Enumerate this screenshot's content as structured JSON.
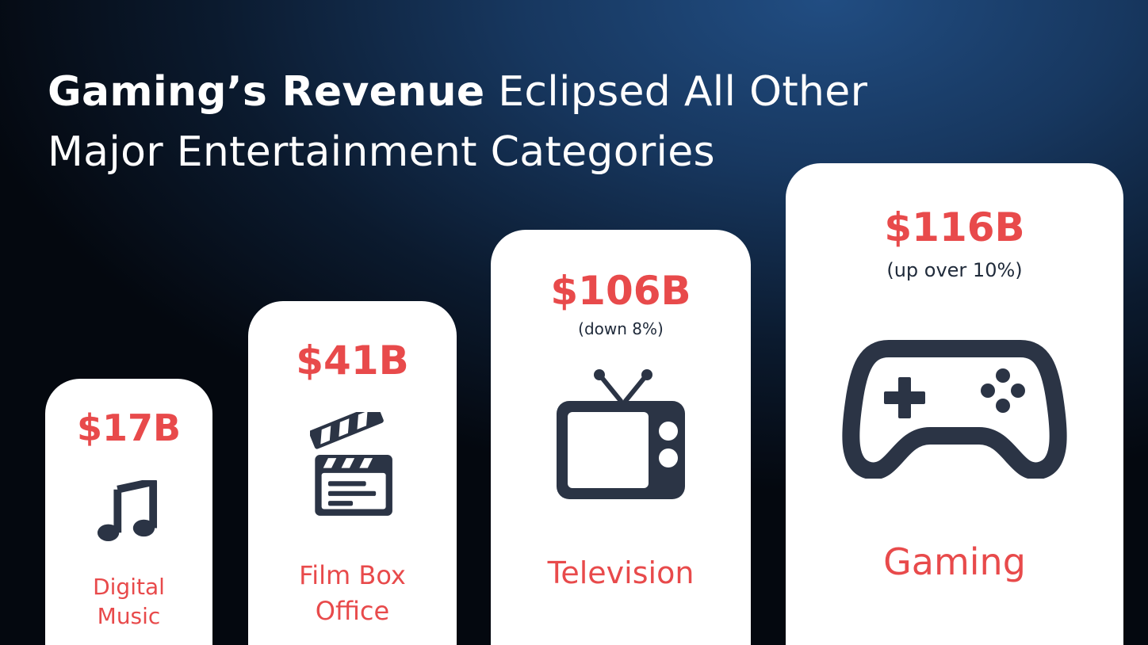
{
  "title": {
    "bold": "Gaming’s Revenue",
    "rest": " Eclipsed All Other Major Entertainment Categories"
  },
  "chart_data": {
    "type": "bar",
    "unit": "$B",
    "categories": [
      "Digital Music",
      "Film Box Office",
      "Television",
      "Gaming"
    ],
    "values": [
      17,
      41,
      106,
      116
    ],
    "value_labels": [
      "$17B",
      "$41B",
      "$106B",
      "$116B"
    ],
    "notes": [
      "",
      "",
      "(down 8%)",
      "(up over 10%)"
    ],
    "label_lines": [
      [
        "Digital",
        "Music"
      ],
      [
        "Film Box",
        "Office"
      ],
      [
        "Television"
      ],
      [
        "Gaming"
      ]
    ],
    "icons": [
      "music-note-icon",
      "clapperboard-icon",
      "television-icon",
      "game-controller-icon"
    ]
  },
  "colors": {
    "accent": "#e84a4b",
    "icon": "#2b3445",
    "card": "#ffffff"
  }
}
